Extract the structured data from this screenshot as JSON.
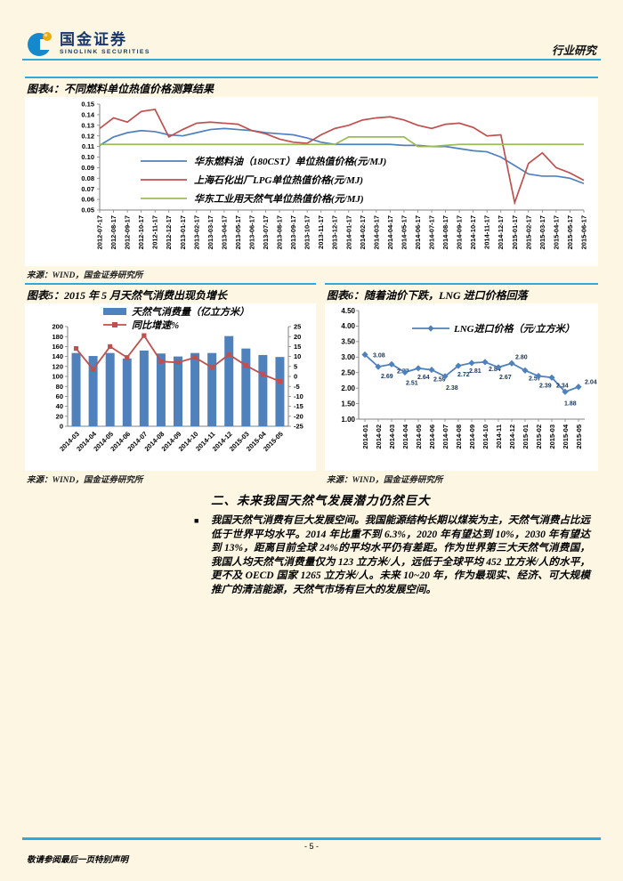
{
  "colors": {
    "page_bg": "#FCF6E3",
    "rule_blue": "#2FA8DF",
    "brand_navy": "#16386E",
    "series_blue": "#4F81BD",
    "series_red": "#C0504D",
    "series_green": "#9BBB59",
    "label_navy": "#17375E",
    "logo_gold": "#F2A900"
  },
  "header": {
    "brand_cn": "国金证券",
    "brand_en": "SINOLINK SECURITIES",
    "report_type": "行业研究"
  },
  "figures": [
    {
      "title": "图表4：不同燃料单位热值价格测算结果",
      "source": "来源：WIND，国金证券研究所"
    },
    {
      "title": "图表5：2015 年 5 月天然气消费出现负增长",
      "source": "来源：WIND，国金证券研究所"
    },
    {
      "title": "图表6：随着油价下跌，LNG 进口价格回落",
      "source": "来源：WIND，国金证券研究所"
    }
  ],
  "chart_data": [
    {
      "type": "line",
      "title": "不同燃料单位热值价格测算结果",
      "ylim": [
        0.05,
        0.15
      ],
      "ytick_step": 0.01,
      "grid": false,
      "legend_position": "inside-left",
      "x": [
        "2012-07-17",
        "2012-08-17",
        "2012-09-17",
        "2012-10-17",
        "2012-11-17",
        "2012-12-17",
        "2013-01-17",
        "2013-02-17",
        "2013-03-17",
        "2013-04-17",
        "2013-05-17",
        "2013-06-17",
        "2013-07-17",
        "2013-08-17",
        "2013-09-17",
        "2013-10-17",
        "2013-11-17",
        "2013-12-17",
        "2014-01-17",
        "2014-02-17",
        "2014-03-17",
        "2014-04-17",
        "2014-05-17",
        "2014-06-17",
        "2014-07-17",
        "2014-08-17",
        "2014-09-17",
        "2014-10-17",
        "2014-11-17",
        "2014-12-17",
        "2015-01-17",
        "2015-02-17",
        "2015-03-17",
        "2015-04-17",
        "2015-05-17",
        "2015-06-17"
      ],
      "series": [
        {
          "name": "华东燃料油（180CST）单位热值价格(元/MJ)",
          "color": "#4F81BD",
          "values": [
            0.111,
            0.119,
            0.123,
            0.125,
            0.124,
            0.121,
            0.12,
            0.123,
            0.126,
            0.127,
            0.126,
            0.125,
            0.123,
            0.122,
            0.121,
            0.118,
            0.114,
            0.112,
            0.112,
            0.112,
            0.112,
            0.112,
            0.111,
            0.111,
            0.11,
            0.11,
            0.108,
            0.106,
            0.105,
            0.1,
            0.092,
            0.084,
            0.082,
            0.082,
            0.08,
            0.075
          ]
        },
        {
          "name": "上海石化出厂LPG单位热值价格(元/MJ)",
          "color": "#C0504D",
          "values": [
            0.127,
            0.137,
            0.133,
            0.143,
            0.145,
            0.119,
            0.126,
            0.132,
            0.133,
            0.132,
            0.131,
            0.125,
            0.122,
            0.117,
            0.114,
            0.113,
            0.121,
            0.127,
            0.13,
            0.135,
            0.137,
            0.138,
            0.135,
            0.13,
            0.127,
            0.131,
            0.132,
            0.128,
            0.12,
            0.121,
            0.057,
            0.094,
            0.104,
            0.09,
            0.085,
            0.078
          ]
        },
        {
          "name": "华东工业用天然气单位热值价格(元/MJ)",
          "color": "#9BBB59",
          "values": [
            0.112,
            0.112,
            0.112,
            0.112,
            0.112,
            0.112,
            0.112,
            0.112,
            0.112,
            0.112,
            0.112,
            0.112,
            0.112,
            0.112,
            0.112,
            0.112,
            0.112,
            0.112,
            0.119,
            0.119,
            0.119,
            0.119,
            0.119,
            0.11,
            0.11,
            0.111,
            0.112,
            0.112,
            0.112,
            0.112,
            0.112,
            0.112,
            0.112,
            0.112,
            0.112,
            0.112
          ]
        }
      ]
    },
    {
      "type": "bar",
      "title": "2015年5月天然气消费出现负增长",
      "categories": [
        "2014-03",
        "2014-04",
        "2014-05",
        "2014-06",
        "2014-07",
        "2014-08",
        "2014-09",
        "2014-10",
        "2014-11",
        "2014-12",
        "2015-03",
        "2015-04",
        "2015-05"
      ],
      "left_ylim": [
        0,
        200
      ],
      "left_step": 20,
      "right_ylim": [
        -25,
        25
      ],
      "right_step": 5,
      "grid": false,
      "legend_position": "top-center",
      "bar_series": {
        "name": "天然气消费量（亿立方米）",
        "color": "#4F81BD",
        "axis": "left",
        "values": [
          147,
          141,
          147,
          136,
          152,
          146,
          140,
          147,
          147,
          181,
          156,
          143,
          139
        ]
      },
      "line_series": {
        "name": "同比增速%",
        "color": "#C0504D",
        "axis": "right",
        "marker": "square",
        "values": [
          14,
          3.5,
          15,
          9.5,
          20.5,
          7.5,
          7,
          9.5,
          4.5,
          11,
          5.5,
          1,
          -2.5
        ]
      }
    },
    {
      "type": "line",
      "title": "随着油价下跌，LNG进口价格回落",
      "categories": [
        "2014-01",
        "2014-02",
        "2014-03",
        "2014-04",
        "2014-05",
        "2014-06",
        "2014-07",
        "2014-08",
        "2014-09",
        "2014-10",
        "2014-11",
        "2014-12",
        "2015-01",
        "2015-02",
        "2015-03",
        "2015-04",
        "2015-05"
      ],
      "ylim": [
        1.0,
        4.5
      ],
      "ytick_step": 0.5,
      "grid": false,
      "legend_position": "inside-top",
      "series": [
        {
          "name": "LNG进口价格（元/立方米）",
          "color": "#4F81BD",
          "marker": "diamond",
          "data_labels": true,
          "values": [
            3.08,
            2.69,
            2.77,
            2.51,
            2.64,
            2.59,
            2.38,
            2.72,
            2.81,
            2.84,
            2.67,
            2.8,
            2.57,
            2.39,
            2.34,
            1.88,
            2.04
          ]
        }
      ]
    }
  ],
  "section": {
    "heading": "二、未来我国天然气发展潜力仍然巨大",
    "bullet": "■",
    "bullet_lead": "我国天然气消费有巨大发展空间。",
    "bullet_text": "我国能源结构长期以煤炭为主，天然气消费占比远低于世界平均水平。2014 年比重不到 6.3%，2020 年有望达到 10%，2030 年有望达到 13%，距离目前全球 24%的平均水平仍有差距。作为世界第三大天然气消费国，我国人均天然气消费量仅为 123 立方米/人，远低于全球平均 452 立方米/人的水平，更不及 OECD 国家 1265 立方米/人。未来 10~20 年，作为最现实、经济、可大规模推广的清洁能源，天然气市场有巨大的发展空间。"
  },
  "footer": {
    "page_number": "- 5 -",
    "disclaimer": "敬请参阅最后一页特别声明"
  }
}
